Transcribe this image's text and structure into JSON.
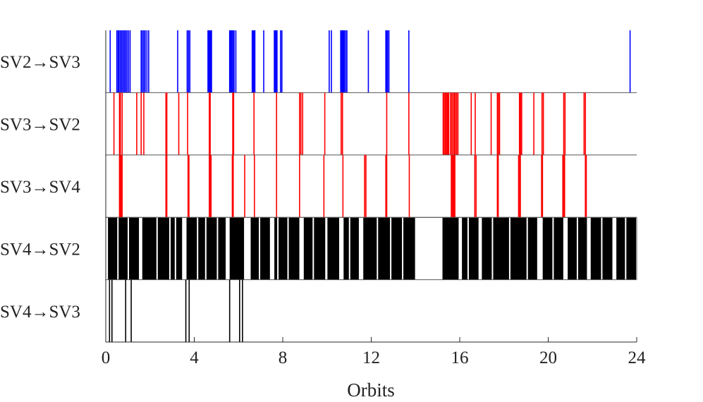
{
  "chart_data": {
    "type": "event-raster",
    "xlabel": "Orbits",
    "xlim": [
      0,
      24
    ],
    "xticks": [
      0,
      4,
      8,
      12,
      16,
      20,
      24
    ],
    "xtick_labels": [
      "0",
      "4",
      "8",
      "12",
      "16",
      "20",
      "24"
    ],
    "grid": false,
    "legend": "none",
    "rows": [
      {
        "label": "SV2→SV3",
        "color": "#0000ff",
        "events": [
          0.2,
          0.5,
          0.56,
          0.6,
          0.66,
          0.72,
          0.78,
          0.84,
          0.9,
          0.96,
          1.03,
          1.1,
          1.6,
          1.66,
          1.72,
          1.78,
          1.86,
          1.94,
          3.25,
          3.68,
          3.74,
          3.8,
          4.62,
          4.66,
          4.7,
          4.74,
          4.78,
          5.6,
          5.65,
          5.7,
          5.75,
          5.8,
          5.88,
          6.62,
          6.66,
          6.7,
          6.74,
          7.14,
          7.62,
          7.66,
          7.7,
          7.74,
          7.9,
          7.96,
          10.1,
          10.2,
          10.62,
          10.66,
          10.7,
          10.74,
          10.78,
          10.84,
          10.9,
          11.87,
          12.66,
          12.7,
          12.74,
          12.8,
          13.7,
          23.7
        ]
      },
      {
        "label": "SV3→SV2",
        "color": "#ff0000",
        "events": [
          0.37,
          0.62,
          0.66,
          0.74,
          1.4,
          1.6,
          1.72,
          2.72,
          2.76,
          3.3,
          3.7,
          4.68,
          4.72,
          5.74,
          5.78,
          6.7,
          7.72,
          8.76,
          8.82,
          8.9,
          9.9,
          10.64,
          10.7,
          12.7,
          13.7,
          15.25,
          15.3,
          15.35,
          15.4,
          15.45,
          15.5,
          15.58,
          15.64,
          15.7,
          15.76,
          15.8,
          15.86,
          15.92,
          16.52,
          16.7,
          17.42,
          17.7,
          17.75,
          17.8,
          18.7,
          18.75,
          18.8,
          19.35,
          19.72,
          19.78,
          20.7,
          20.76,
          21.62,
          21.68
        ]
      },
      {
        "label": "SV3→SV4",
        "color": "#ff0000",
        "events": [
          0.62,
          0.66,
          0.7,
          0.74,
          2.72,
          2.76,
          3.72,
          3.76,
          4.68,
          4.72,
          4.76,
          5.72,
          5.76,
          6.28,
          6.72,
          7.72,
          8.76,
          9.86,
          10.72,
          11.7,
          11.76,
          12.66,
          12.7,
          13.72,
          15.62,
          15.66,
          15.7,
          15.74,
          15.78,
          16.68,
          16.74,
          17.7,
          17.74,
          18.66,
          18.7,
          18.74,
          19.7,
          19.74,
          20.66,
          20.7,
          20.74,
          21.68,
          21.72
        ]
      },
      {
        "label": "SV4→SV2",
        "color": "#000000",
        "bands": [
          [
            0.1,
            1.5
          ],
          [
            1.65,
            3.45
          ],
          [
            3.65,
            5.42
          ],
          [
            5.6,
            6.25
          ],
          [
            6.55,
            7.42
          ],
          [
            7.62,
            8.75
          ],
          [
            8.95,
            9.92
          ],
          [
            10.02,
            10.55
          ],
          [
            10.75,
            11.44
          ],
          [
            11.64,
            13.98
          ],
          [
            15.22,
            15.95
          ],
          [
            16.1,
            16.85
          ],
          [
            17.0,
            19.5
          ],
          [
            19.75,
            20.68
          ],
          [
            20.88,
            21.75
          ],
          [
            21.92,
            22.9
          ],
          [
            23.08,
            23.97
          ]
        ],
        "events": [
          0.55,
          1.02,
          2.32,
          2.9,
          3.15,
          4.15,
          4.52,
          5.05,
          6.95,
          7.78,
          8.24,
          9.38,
          11.02,
          12.28,
          12.88,
          13.42,
          16.38,
          17.48,
          18.26,
          19.05,
          20.22,
          21.32,
          22.42,
          23.5
        ]
      },
      {
        "label": "SV4→SV3",
        "color": "#000000",
        "events": [
          0.17,
          0.28,
          0.9,
          1.15,
          3.62,
          3.77,
          5.6,
          6.05,
          6.18
        ]
      }
    ]
  }
}
